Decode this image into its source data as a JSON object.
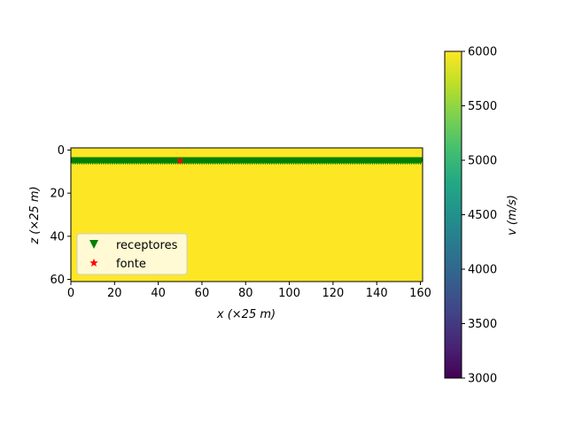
{
  "chart_data": {
    "type": "heatmap",
    "title": "",
    "xlabel": "x (×25 m)",
    "ylabel": "z (×25 m)",
    "xlim": [
      0,
      161
    ],
    "ylim": [
      61,
      -1
    ],
    "xticks": [
      0,
      20,
      40,
      60,
      80,
      100,
      120,
      140,
      160
    ],
    "yticks": [
      0,
      20,
      40,
      60
    ],
    "field": {
      "description": "uniform velocity model",
      "value": 6000,
      "color": "#fde725"
    },
    "series": [
      {
        "name": "receptores",
        "marker": "triangle-down",
        "color": "#008000",
        "z": 5,
        "x_start": 0,
        "x_end": 160,
        "x_step": 1
      },
      {
        "name": "fonte",
        "marker": "star",
        "color": "#ff0000",
        "points": [
          {
            "x": 50,
            "z": 5
          }
        ]
      }
    ],
    "legend": {
      "placement": "lower-left"
    },
    "colorbar": {
      "label": "v (m/s)",
      "colormap": "viridis",
      "vmin": 3000,
      "vmax": 6000,
      "ticks": [
        3000,
        3500,
        4000,
        4500,
        5000,
        5500,
        6000
      ]
    }
  }
}
